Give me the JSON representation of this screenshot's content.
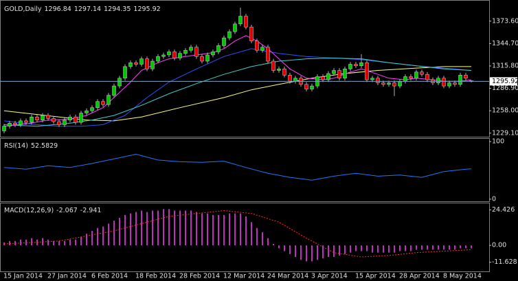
{
  "chart_data": [
    {
      "type": "candlestick",
      "title": "GOLD,Daily",
      "categories": [
        "15 Jan 2014",
        null,
        null,
        null,
        null,
        null,
        null,
        null,
        "27 Jan 2014",
        null,
        null,
        null,
        null,
        null,
        null,
        null,
        "6 Feb 2014",
        null,
        null,
        null,
        null,
        null,
        null,
        null,
        "18 Feb 2014",
        null,
        null,
        null,
        null,
        null,
        null,
        null,
        "28 Feb 2014",
        null,
        null,
        null,
        null,
        null,
        null,
        null,
        "12 Mar 2014",
        null,
        null,
        null,
        null,
        null,
        null,
        null,
        "24 Mar 2014",
        null,
        null,
        null,
        null,
        null,
        null,
        null,
        "3 Apr 2014",
        null,
        null,
        null,
        null,
        null,
        null,
        null,
        "15 Apr 2014",
        null,
        null,
        null,
        null,
        null,
        null,
        null,
        "28 Apr 2014",
        null,
        null,
        null,
        null,
        null,
        null,
        null,
        "8 May 2014",
        null,
        null,
        null,
        null,
        null
      ],
      "open": [
        1232,
        1238,
        1242,
        1240,
        1245,
        1243,
        1250,
        1246,
        1252,
        1248,
        1244,
        1240,
        1246,
        1250,
        1243,
        1255,
        1258,
        1262,
        1270,
        1266,
        1278,
        1290,
        1300,
        1315,
        1320,
        1318,
        1325,
        1312,
        1322,
        1328,
        1330,
        1334,
        1326,
        1332,
        1336,
        1340,
        1328,
        1322,
        1330,
        1334,
        1342,
        1352,
        1360,
        1370,
        1380,
        1366,
        1348,
        1336,
        1340,
        1322,
        1310,
        1312,
        1304,
        1296,
        1300,
        1292,
        1286,
        1290,
        1302,
        1298,
        1306,
        1310,
        1300,
        1312,
        1318,
        1316,
        1320,
        1298,
        1300,
        1294,
        1292,
        1294,
        1290,
        1296,
        1302,
        1300,
        1308,
        1305,
        1298,
        1294,
        1300,
        1290,
        1294,
        1292,
        1304,
        1296.84
      ],
      "high": [
        1241,
        1245,
        1245,
        1248,
        1248,
        1253,
        1253,
        1255,
        1255,
        1251,
        1247,
        1249,
        1253,
        1253,
        1258,
        1261,
        1265,
        1273,
        1273,
        1281,
        1293,
        1303,
        1318,
        1323,
        1323,
        1328,
        1328,
        1325,
        1331,
        1333,
        1337,
        1337,
        1335,
        1339,
        1343,
        1343,
        1331,
        1333,
        1337,
        1345,
        1355,
        1363,
        1373,
        1391,
        1383,
        1369,
        1351,
        1343,
        1343,
        1325,
        1315,
        1315,
        1307,
        1303,
        1303,
        1295,
        1293,
        1305,
        1305,
        1309,
        1313,
        1313,
        1315,
        1321,
        1321,
        1331,
        1323,
        1303,
        1303,
        1297,
        1297,
        1297,
        1299,
        1305,
        1305,
        1311,
        1311,
        1308,
        1301,
        1303,
        1303,
        1297,
        1297,
        1307,
        1307,
        1297.14
      ],
      "low": [
        1229,
        1235,
        1237,
        1237,
        1240,
        1240,
        1243,
        1243,
        1245,
        1241,
        1237,
        1237,
        1243,
        1240,
        1240,
        1252,
        1255,
        1259,
        1263,
        1263,
        1275,
        1287,
        1297,
        1312,
        1315,
        1315,
        1309,
        1309,
        1319,
        1325,
        1327,
        1323,
        1323,
        1329,
        1333,
        1325,
        1319,
        1319,
        1327,
        1331,
        1339,
        1349,
        1357,
        1367,
        1363,
        1345,
        1333,
        1333,
        1319,
        1307,
        1307,
        1301,
        1293,
        1293,
        1289,
        1283,
        1283,
        1287,
        1295,
        1295,
        1303,
        1297,
        1297,
        1309,
        1313,
        1313,
        1295,
        1295,
        1291,
        1289,
        1289,
        1277,
        1287,
        1293,
        1297,
        1297,
        1302,
        1295,
        1291,
        1291,
        1287,
        1287,
        1289,
        1289,
        1297,
        1294.35
      ],
      "close": [
        1238,
        1242,
        1240,
        1245,
        1243,
        1250,
        1246,
        1252,
        1248,
        1244,
        1240,
        1246,
        1250,
        1243,
        1255,
        1258,
        1262,
        1270,
        1266,
        1278,
        1290,
        1300,
        1315,
        1320,
        1318,
        1325,
        1312,
        1322,
        1328,
        1330,
        1334,
        1326,
        1332,
        1336,
        1340,
        1328,
        1322,
        1330,
        1334,
        1342,
        1352,
        1360,
        1370,
        1380,
        1366,
        1348,
        1336,
        1340,
        1322,
        1310,
        1312,
        1304,
        1296,
        1300,
        1292,
        1286,
        1290,
        1302,
        1298,
        1306,
        1310,
        1300,
        1312,
        1318,
        1316,
        1320,
        1298,
        1300,
        1294,
        1292,
        1294,
        1290,
        1296,
        1302,
        1300,
        1308,
        1305,
        1298,
        1294,
        1300,
        1290,
        1294,
        1292,
        1304,
        1300,
        1295.92
      ],
      "up_color": "#00c800",
      "down_color": "#e00000",
      "wick_color": "#b0b0b0",
      "price_line_color": "#7fa8c8",
      "series": [
        {
          "color": "#ffff80",
          "x": [
            0,
            10,
            15,
            20,
            25,
            32,
            40,
            45,
            50,
            56,
            62,
            68,
            75,
            80,
            85
          ],
          "values": [
            1258,
            1250,
            1246,
            1245,
            1250,
            1262,
            1275,
            1285,
            1292,
            1300,
            1306,
            1310,
            1313,
            1315,
            1315
          ]
        },
        {
          "color": "#3050ff",
          "x": [
            0,
            6,
            10,
            14,
            18,
            22,
            26,
            30,
            35,
            40,
            45,
            50,
            55,
            60,
            65,
            70,
            75,
            80,
            85
          ],
          "values": [
            1245,
            1240,
            1238,
            1238,
            1240,
            1252,
            1275,
            1295,
            1312,
            1328,
            1338,
            1332,
            1328,
            1326,
            1324,
            1320,
            1316,
            1313,
            1310
          ]
        },
        {
          "color": "#40d0d0",
          "x": [
            0,
            6,
            12,
            16,
            20,
            25,
            30,
            35,
            40,
            45,
            50,
            55,
            60,
            65,
            70,
            75,
            80,
            85
          ],
          "values": [
            1240,
            1238,
            1242,
            1246,
            1252,
            1265,
            1280,
            1293,
            1305,
            1315,
            1322,
            1325,
            1326,
            1325,
            1320,
            1316,
            1312,
            1310
          ]
        },
        {
          "color": "#ff40ff",
          "x": [
            0,
            4,
            8,
            12,
            15,
            18,
            20,
            23,
            25,
            28,
            30,
            33,
            35,
            38,
            40,
            42,
            44,
            46,
            48,
            50,
            52,
            55,
            58,
            60,
            63,
            65,
            68,
            70,
            73,
            75,
            78,
            80,
            83,
            85
          ],
          "values": [
            1238,
            1241,
            1246,
            1247,
            1252,
            1262,
            1275,
            1295,
            1310,
            1320,
            1325,
            1328,
            1330,
            1333,
            1338,
            1348,
            1355,
            1348,
            1338,
            1325,
            1312,
            1300,
            1298,
            1300,
            1308,
            1312,
            1305,
            1300,
            1298,
            1300,
            1298,
            1296,
            1296,
            1298
          ]
        }
      ],
      "xlim": [
        -0.75,
        88.25
      ],
      "ylim": [
        1223.6,
        1400.0
      ],
      "yticks": [
        {
          "value": 1373.6,
          "label": "1373.60"
        },
        {
          "value": 1344.7,
          "label": "1344.70"
        },
        {
          "value": 1315.8,
          "label": "1315.80"
        },
        {
          "value": 1286.9,
          "label": "1286.90"
        },
        {
          "value": 1258,
          "label": "1258.00"
        },
        {
          "value": 1229.1,
          "label": "1229.10"
        }
      ]
    },
    {
      "type": "line",
      "title": "RSI(14)",
      "series": [
        {
          "color": "#1e78ff",
          "x": [
            0,
            4,
            8,
            12,
            16,
            20,
            24,
            28,
            32,
            36,
            40,
            44,
            48,
            52,
            56,
            60,
            64,
            68,
            72,
            76,
            80,
            84,
            85
          ],
          "values": [
            55,
            52,
            58,
            55,
            62,
            70,
            78,
            68,
            65,
            64,
            66,
            55,
            45,
            38,
            33,
            40,
            45,
            40,
            42,
            38,
            48,
            52,
            52.5829
          ]
        }
      ],
      "ylim": [
        -4.9,
        104.9
      ],
      "yticks": [
        100,
        0
      ]
    },
    {
      "type": "macd",
      "title": "MACD(12,26,9)",
      "histogram": {
        "color": "#ff40ff",
        "values": [
          2,
          3,
          3,
          4,
          4,
          5,
          4,
          5,
          4,
          3,
          3,
          3,
          4,
          4,
          6,
          8,
          10,
          12,
          13,
          15,
          17,
          19,
          21,
          22,
          23,
          24,
          23,
          24,
          24,
          25,
          25,
          24,
          24,
          24,
          24,
          23,
          22,
          22,
          21,
          21,
          21,
          22,
          22,
          22,
          20,
          16,
          12,
          9,
          5,
          1,
          -2,
          -4,
          -6,
          -8,
          -10,
          -11,
          -11,
          -10,
          -9,
          -8,
          -8,
          -7,
          -6,
          -5,
          -4,
          -4,
          -4,
          -5,
          -5,
          -5,
          -5,
          -5,
          -4,
          -4,
          -4,
          -3,
          -3,
          -3,
          -3,
          -3,
          -3,
          -3,
          -3,
          -2,
          -2,
          -2.067
        ]
      },
      "signal": {
        "color": "#ff3030",
        "x": [
          0,
          10,
          20,
          30,
          40,
          45,
          50,
          55,
          60,
          65,
          70,
          75,
          80,
          85
        ],
        "values": [
          1,
          3,
          10,
          20,
          24,
          22,
          16,
          5,
          -5,
          -8,
          -7,
          -5,
          -4,
          -2.941
        ]
      },
      "ylim": [
        -18.4,
        28.95
      ],
      "yticks": [
        24.426,
        {
          "value": 0,
          "label": "0.00"
        },
        -11.628
      ]
    }
  ]
}
